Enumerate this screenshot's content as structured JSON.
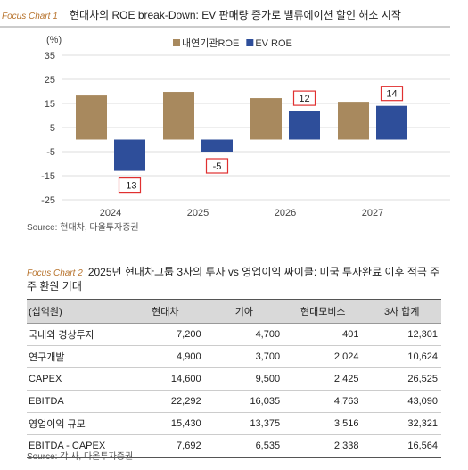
{
  "chart_data": {
    "type": "bar",
    "label": "Focus Chart 1",
    "title": "현대차의 ROE break-Down: EV 판매량 증가로 밸류에이션 할인 해소 시작",
    "unit": "(%)",
    "categories": [
      "2024",
      "2025",
      "2026",
      "2027"
    ],
    "series": [
      {
        "name": "내연기관ROE",
        "color": "#a8895e",
        "values": [
          18.3,
          19.8,
          17.2,
          15.7
        ]
      },
      {
        "name": "EV ROE",
        "color": "#2e4e9a",
        "values": [
          -13,
          -5,
          12,
          14
        ]
      }
    ],
    "ylim": [
      -25,
      35
    ],
    "yticks": [
      35,
      25,
      15,
      5,
      -5,
      -15,
      -25
    ],
    "grid": true,
    "source": "Source: 현대차, 다올투자증권"
  },
  "table": {
    "label": "Focus Chart 2",
    "title": "2025년 현대차그룹 3사의 투자 vs 영업이익 싸이클: 미국 투자완료 이후 적극 주주 환원 기대",
    "header": [
      "(십억원)",
      "현대차",
      "기아",
      "현대모비스",
      "3사 합계"
    ],
    "rows": [
      [
        "국내외 경상투자",
        "7,200",
        "4,700",
        "401",
        "12,301"
      ],
      [
        "연구개발",
        "4,900",
        "3,700",
        "2,024",
        "10,624"
      ],
      [
        "CAPEX",
        "14,600",
        "9,500",
        "2,425",
        "26,525"
      ],
      [
        "EBITDA",
        "22,292",
        "16,035",
        "4,763",
        "43,090"
      ],
      [
        "영업이익 규모",
        "15,430",
        "13,375",
        "3,516",
        "32,321"
      ],
      [
        "EBITDA - CAPEX",
        "7,692",
        "6,535",
        "2,338",
        "16,564"
      ]
    ],
    "source": "Source: 각 사, 다올투자증권"
  }
}
